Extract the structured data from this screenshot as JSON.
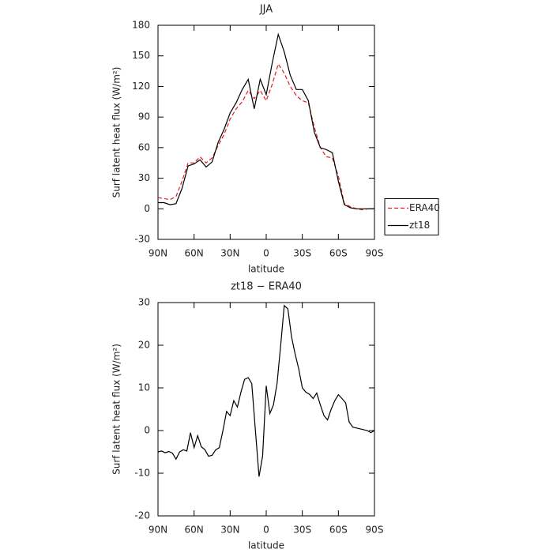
{
  "chart_data": [
    {
      "type": "line",
      "title": "JJA",
      "xlabel": "latitude",
      "ylabel": "Surf latent heat flux (W/m²)",
      "xlim": [
        90,
        -90
      ],
      "ylim": [
        -30,
        180
      ],
      "xticks": [
        {
          "value": 90,
          "label": "90N"
        },
        {
          "value": 60,
          "label": "60N"
        },
        {
          "value": 30,
          "label": "30N"
        },
        0,
        {
          "value": -30,
          "label": "30S"
        },
        {
          "value": -60,
          "label": "60S"
        },
        {
          "value": -90,
          "label": "90S"
        }
      ],
      "yticks": [
        -30,
        0,
        30,
        60,
        90,
        120,
        150,
        180
      ],
      "legend": "right",
      "x": [
        90,
        85,
        80,
        75,
        70,
        65,
        60,
        55,
        50,
        45,
        40,
        35,
        30,
        25,
        20,
        15,
        10,
        5,
        0,
        -5,
        -10,
        -15,
        -20,
        -25,
        -30,
        -35,
        -40,
        -45,
        -50,
        -55,
        -60,
        -65,
        -70,
        -75,
        -80,
        -85,
        -90
      ],
      "series": [
        {
          "name": "ERA40",
          "color": "#e41a1c",
          "dash": true,
          "values": [
            11,
            10,
            9,
            12,
            27,
            45,
            45,
            51,
            45,
            50,
            62,
            73,
            88,
            98,
            105,
            116,
            108,
            116,
            106,
            122,
            142,
            133,
            120,
            111,
            106,
            104,
            80,
            60,
            51,
            50,
            32,
            5,
            2,
            0,
            -1,
            0,
            0
          ]
        },
        {
          "name": "zt18",
          "color": "#000000",
          "dash": false,
          "values": [
            6,
            6,
            4,
            5,
            20,
            42,
            44,
            48,
            41,
            46,
            65,
            78,
            94,
            104,
            117,
            127,
            98,
            127,
            112,
            143,
            171,
            154,
            131,
            117,
            117,
            106,
            75,
            60,
            58,
            55,
            27,
            4,
            1,
            0,
            0,
            0,
            0
          ]
        }
      ]
    },
    {
      "type": "line",
      "title": "zt18 − ERA40",
      "xlabel": "latitude",
      "ylabel": "Surf latent heat flux (W/m²)",
      "xlim": [
        90,
        -90
      ],
      "ylim": [
        -20,
        30
      ],
      "xticks": [
        {
          "value": 90,
          "label": "90N"
        },
        {
          "value": 60,
          "label": "60N"
        },
        {
          "value": 30,
          "label": "30N"
        },
        0,
        {
          "value": -30,
          "label": "30S"
        },
        {
          "value": -60,
          "label": "60S"
        },
        {
          "value": -90,
          "label": "90S"
        }
      ],
      "yticks": [
        -20,
        -10,
        0,
        10,
        20,
        30
      ],
      "x": [
        90,
        87,
        84,
        81,
        78,
        75,
        72,
        69,
        66,
        63,
        60,
        57,
        54,
        51,
        48,
        45,
        42,
        39,
        36,
        33,
        30,
        27,
        24,
        21,
        18,
        15,
        12,
        9,
        6,
        3,
        0,
        -3,
        -6,
        -9,
        -12,
        -15,
        -18,
        -21,
        -24,
        -27,
        -30,
        -33,
        -36,
        -39,
        -42,
        -45,
        -48,
        -51,
        -54,
        -57,
        -60,
        -63,
        -66,
        -69,
        -72,
        -75,
        -78,
        -81,
        -84,
        -87,
        -90
      ],
      "series": [
        {
          "color": "#000000",
          "dash": false,
          "values": [
            -5,
            -4.8,
            -5.2,
            -4.9,
            -5.3,
            -6.7,
            -5,
            -4.5,
            -4.8,
            -0.5,
            -4,
            -1.2,
            -3.8,
            -4.5,
            -6,
            -5.8,
            -4.5,
            -4,
            0,
            4.5,
            3.5,
            7,
            5.5,
            9,
            12,
            12.4,
            11,
            0,
            -10.8,
            -6,
            10.5,
            4,
            6,
            11,
            20,
            29.3,
            28.5,
            22,
            18,
            14.5,
            10,
            9,
            8.5,
            7.5,
            8.8,
            6,
            3.5,
            2.5,
            5,
            7,
            8.4,
            7.5,
            6.5,
            2,
            0.8,
            0.6,
            0.4,
            0.2,
            0,
            -0.5,
            0
          ]
        }
      ]
    }
  ]
}
